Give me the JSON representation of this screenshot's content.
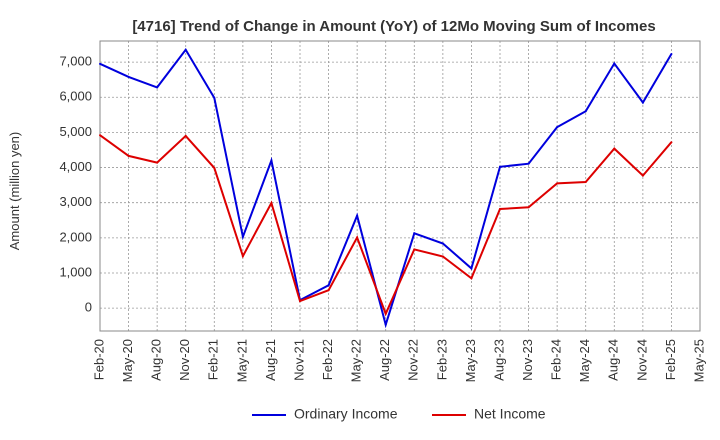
{
  "chart_data": {
    "type": "line",
    "title": "[4716]  Trend of Change in Amount (YoY) of 12Mo Moving Sum of Incomes",
    "xlabel": "",
    "ylabel": "Amount (million yen)",
    "ylim": [
      -650,
      7600
    ],
    "yticks": [
      0,
      1000,
      2000,
      3000,
      4000,
      5000,
      6000,
      7000
    ],
    "ytick_labels": [
      "0",
      "1,000",
      "2,000",
      "3,000",
      "4,000",
      "5,000",
      "6,000",
      "7,000"
    ],
    "categories": [
      "Feb-20",
      "May-20",
      "Aug-20",
      "Nov-20",
      "Feb-21",
      "May-21",
      "Aug-21",
      "Nov-21",
      "Feb-22",
      "May-22",
      "Aug-22",
      "Nov-22",
      "Feb-23",
      "May-23",
      "Aug-23",
      "Nov-23",
      "Feb-24",
      "May-24",
      "Aug-24",
      "Nov-24",
      "Feb-25",
      "May-25"
    ],
    "grid": true,
    "legend_position": "bottom",
    "series": [
      {
        "name": "Ordinary Income",
        "color": "#0000dd",
        "values": [
          6950,
          6580,
          6280,
          7350,
          5980,
          2030,
          4200,
          230,
          650,
          2630,
          -470,
          2130,
          1840,
          1130,
          4020,
          4110,
          5150,
          5600,
          6960,
          5850,
          7230,
          null
        ]
      },
      {
        "name": "Net Income",
        "color": "#dd0000",
        "values": [
          4920,
          4330,
          4140,
          4900,
          3990,
          1480,
          2990,
          200,
          510,
          2010,
          -160,
          1670,
          1470,
          850,
          2820,
          2870,
          3550,
          3590,
          4540,
          3770,
          4720,
          null
        ]
      }
    ]
  }
}
